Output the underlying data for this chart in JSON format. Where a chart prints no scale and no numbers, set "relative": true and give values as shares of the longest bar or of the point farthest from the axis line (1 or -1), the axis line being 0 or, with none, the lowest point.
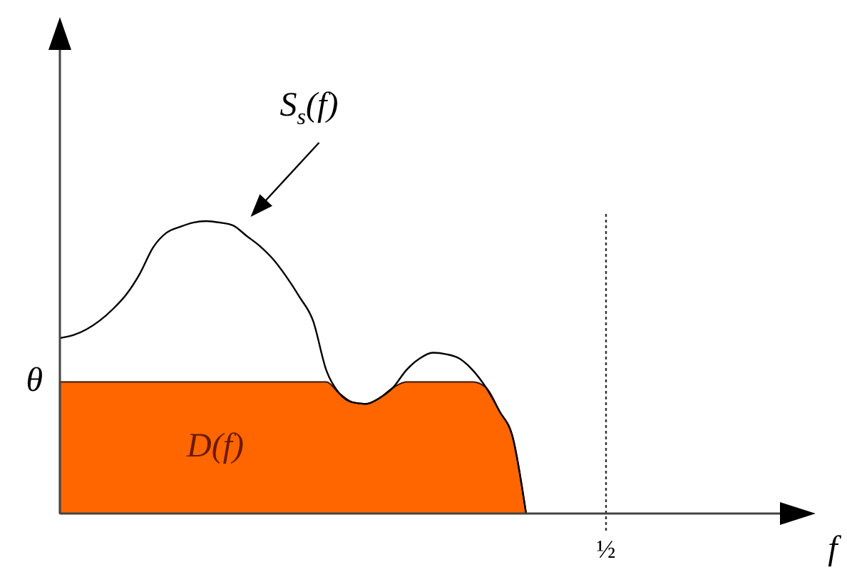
{
  "chart_data": {
    "type": "line",
    "relative": true,
    "categories": [
      null,
      null,
      null,
      null,
      null,
      null,
      null,
      null,
      null,
      null,
      null,
      null,
      null,
      null,
      null,
      null,
      null,
      null,
      null,
      null,
      null,
      null,
      null,
      null,
      null,
      null,
      null,
      null,
      null,
      null,
      null,
      null,
      null,
      null,
      null,
      null,
      null,
      null,
      null,
      null,
      null,
      null
    ],
    "series": [
      {
        "name": "S$_{s}$(f)",
        "type": "line",
        "color": "#000000",
        "values": [
          0.6,
          0.61,
          0.63,
          0.66,
          0.7,
          0.75,
          0.82,
          0.91,
          0.96,
          0.98,
          0.995,
          1,
          0.995,
          0.985,
          0.95,
          0.915,
          0.87,
          0.81,
          0.74,
          0.66,
          0.49,
          0.41,
          0.38,
          0.375,
          0.395,
          0.43,
          0.49,
          0.53,
          0.55,
          0.545,
          0.53,
          0.49,
          0.43,
          0.35,
          0.26,
          0,
          null,
          null,
          null,
          null,
          null,
          null
        ]
      },
      {
        "name": "D(f)",
        "type": "area",
        "color": "#ff6600",
        "values": [
          0.45,
          0.45,
          0.45,
          0.45,
          0.45,
          0.45,
          0.45,
          0.45,
          0.45,
          0.45,
          0.45,
          0.45,
          0.45,
          0.45,
          0.45,
          0.45,
          0.45,
          0.45,
          0.45,
          0.45,
          0.45,
          0.41,
          0.38,
          0.375,
          0.395,
          0.43,
          0.45,
          0.45,
          0.45,
          0.45,
          0.45,
          0.45,
          0.43,
          0.35,
          0.26,
          0,
          null,
          null,
          null,
          null,
          null,
          null
        ]
      }
    ],
    "annotations": [
      "θ",
      "f"
    ],
    "ref_lines": [
      {
        "axis": "x",
        "label": "½",
        "line_style": "dotted",
        "color": "#333333"
      }
    ]
  }
}
